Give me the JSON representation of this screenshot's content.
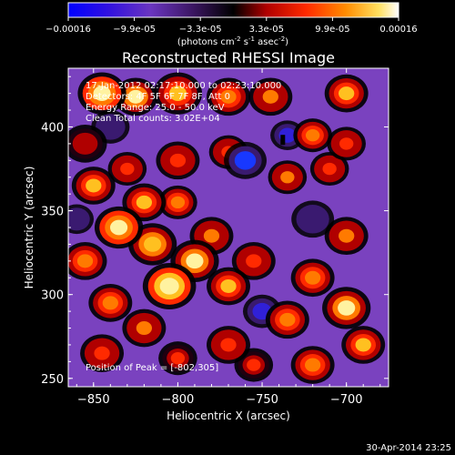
{
  "colorbar": {
    "ticks": [
      "-0.00016",
      "-9.9e-05",
      "-3.3e-05",
      "3.3e-05",
      "9.9e-05",
      "0.00016"
    ],
    "units_prefix": "(photons cm",
    "units_sup1": "-2",
    "units_mid": " s",
    "units_sup2": "-1",
    "units_mid2": " asec",
    "units_sup3": "-2",
    "units_suffix": ")",
    "colors": [
      "#0000ff",
      "#5b20c8",
      "#7a40b8",
      "#000000",
      "#b00000",
      "#ff2000",
      "#ff8000",
      "#ffd040",
      "#ffffff"
    ]
  },
  "chart_data": {
    "type": "heatmap",
    "title": "Reconstructed RHESSI Image",
    "xlabel": "Heliocentric X (arcsec)",
    "ylabel": "Heliocentric Y (arcsec)",
    "xlim": [
      -865,
      -675
    ],
    "ylim": [
      245,
      435
    ],
    "xticks": [
      -850,
      -800,
      -750,
      -700
    ],
    "yticks": [
      250,
      300,
      350,
      400
    ],
    "xtick_labels": [
      "−850",
      "−800",
      "−750",
      "−700"
    ],
    "ytick_labels": [
      "250",
      "300",
      "350",
      "400"
    ],
    "annotations": [
      "17-Jan-2012 02:17:10.000 to 02:23:10.000",
      "Detectors: 4F 5F 6F 7F 8F, Att 0",
      "Energy Range: 25.0 - 50.0 keV",
      "Clean    Total counts: 3.02E+04"
    ],
    "peak_label": "Position of Peak = [-802,305]",
    "peak": [
      -802,
      305
    ],
    "blobs": [
      {
        "x": -845,
        "y": 420,
        "v": 0.9,
        "r": 10
      },
      {
        "x": -825,
        "y": 418,
        "v": 0.85,
        "r": 9
      },
      {
        "x": -800,
        "y": 420,
        "v": 0.75,
        "r": 10
      },
      {
        "x": -770,
        "y": 418,
        "v": 0.6,
        "r": 9
      },
      {
        "x": -745,
        "y": 418,
        "v": 0.55,
        "r": 9
      },
      {
        "x": -700,
        "y": 420,
        "v": 0.7,
        "r": 9
      },
      {
        "x": -720,
        "y": 395,
        "v": 0.6,
        "r": 8
      },
      {
        "x": -700,
        "y": 390,
        "v": 0.5,
        "r": 8
      },
      {
        "x": -855,
        "y": 390,
        "v": 0.35,
        "r": 9
      },
      {
        "x": -830,
        "y": 375,
        "v": 0.45,
        "r": 8
      },
      {
        "x": -800,
        "y": 380,
        "v": 0.5,
        "r": 9
      },
      {
        "x": -770,
        "y": 385,
        "v": 0.45,
        "r": 8
      },
      {
        "x": -710,
        "y": 375,
        "v": 0.45,
        "r": 8
      },
      {
        "x": -735,
        "y": 370,
        "v": 0.55,
        "r": 8
      },
      {
        "x": -850,
        "y": 365,
        "v": 0.7,
        "r": 9
      },
      {
        "x": -835,
        "y": 340,
        "v": 0.95,
        "r": 10
      },
      {
        "x": -820,
        "y": 355,
        "v": 0.75,
        "r": 9
      },
      {
        "x": -800,
        "y": 355,
        "v": 0.65,
        "r": 8
      },
      {
        "x": -780,
        "y": 335,
        "v": 0.55,
        "r": 9
      },
      {
        "x": -855,
        "y": 320,
        "v": 0.6,
        "r": 9
      },
      {
        "x": -815,
        "y": 330,
        "v": 0.8,
        "r": 10
      },
      {
        "x": -790,
        "y": 320,
        "v": 0.85,
        "r": 10
      },
      {
        "x": -805,
        "y": 305,
        "v": 1.0,
        "r": 11
      },
      {
        "x": -770,
        "y": 305,
        "v": 0.7,
        "r": 9
      },
      {
        "x": -755,
        "y": 320,
        "v": 0.5,
        "r": 9
      },
      {
        "x": -840,
        "y": 295,
        "v": 0.6,
        "r": 9
      },
      {
        "x": -820,
        "y": 280,
        "v": 0.55,
        "r": 9
      },
      {
        "x": -845,
        "y": 265,
        "v": 0.45,
        "r": 9
      },
      {
        "x": -800,
        "y": 262,
        "v": 0.4,
        "r": 8
      },
      {
        "x": -770,
        "y": 270,
        "v": 0.5,
        "r": 9
      },
      {
        "x": -700,
        "y": 335,
        "v": 0.55,
        "r": 9
      },
      {
        "x": -720,
        "y": 310,
        "v": 0.6,
        "r": 9
      },
      {
        "x": -735,
        "y": 285,
        "v": 0.65,
        "r": 9
      },
      {
        "x": -700,
        "y": 292,
        "v": 0.85,
        "r": 10
      },
      {
        "x": -690,
        "y": 270,
        "v": 0.7,
        "r": 9
      },
      {
        "x": -720,
        "y": 258,
        "v": 0.65,
        "r": 9
      },
      {
        "x": -755,
        "y": 258,
        "v": 0.4,
        "r": 8
      },
      {
        "x": -760,
        "y": 380,
        "v": -0.6,
        "r": 10
      },
      {
        "x": -735,
        "y": 395,
        "v": -0.4,
        "r": 8
      },
      {
        "x": -720,
        "y": 345,
        "v": -0.25,
        "r": 10
      },
      {
        "x": -750,
        "y": 290,
        "v": -0.3,
        "r": 9
      },
      {
        "x": -840,
        "y": 400,
        "v": -0.2,
        "r": 9
      },
      {
        "x": -860,
        "y": 345,
        "v": -0.2,
        "r": 8
      }
    ]
  },
  "timestamp": "30-Apr-2014 23:25"
}
